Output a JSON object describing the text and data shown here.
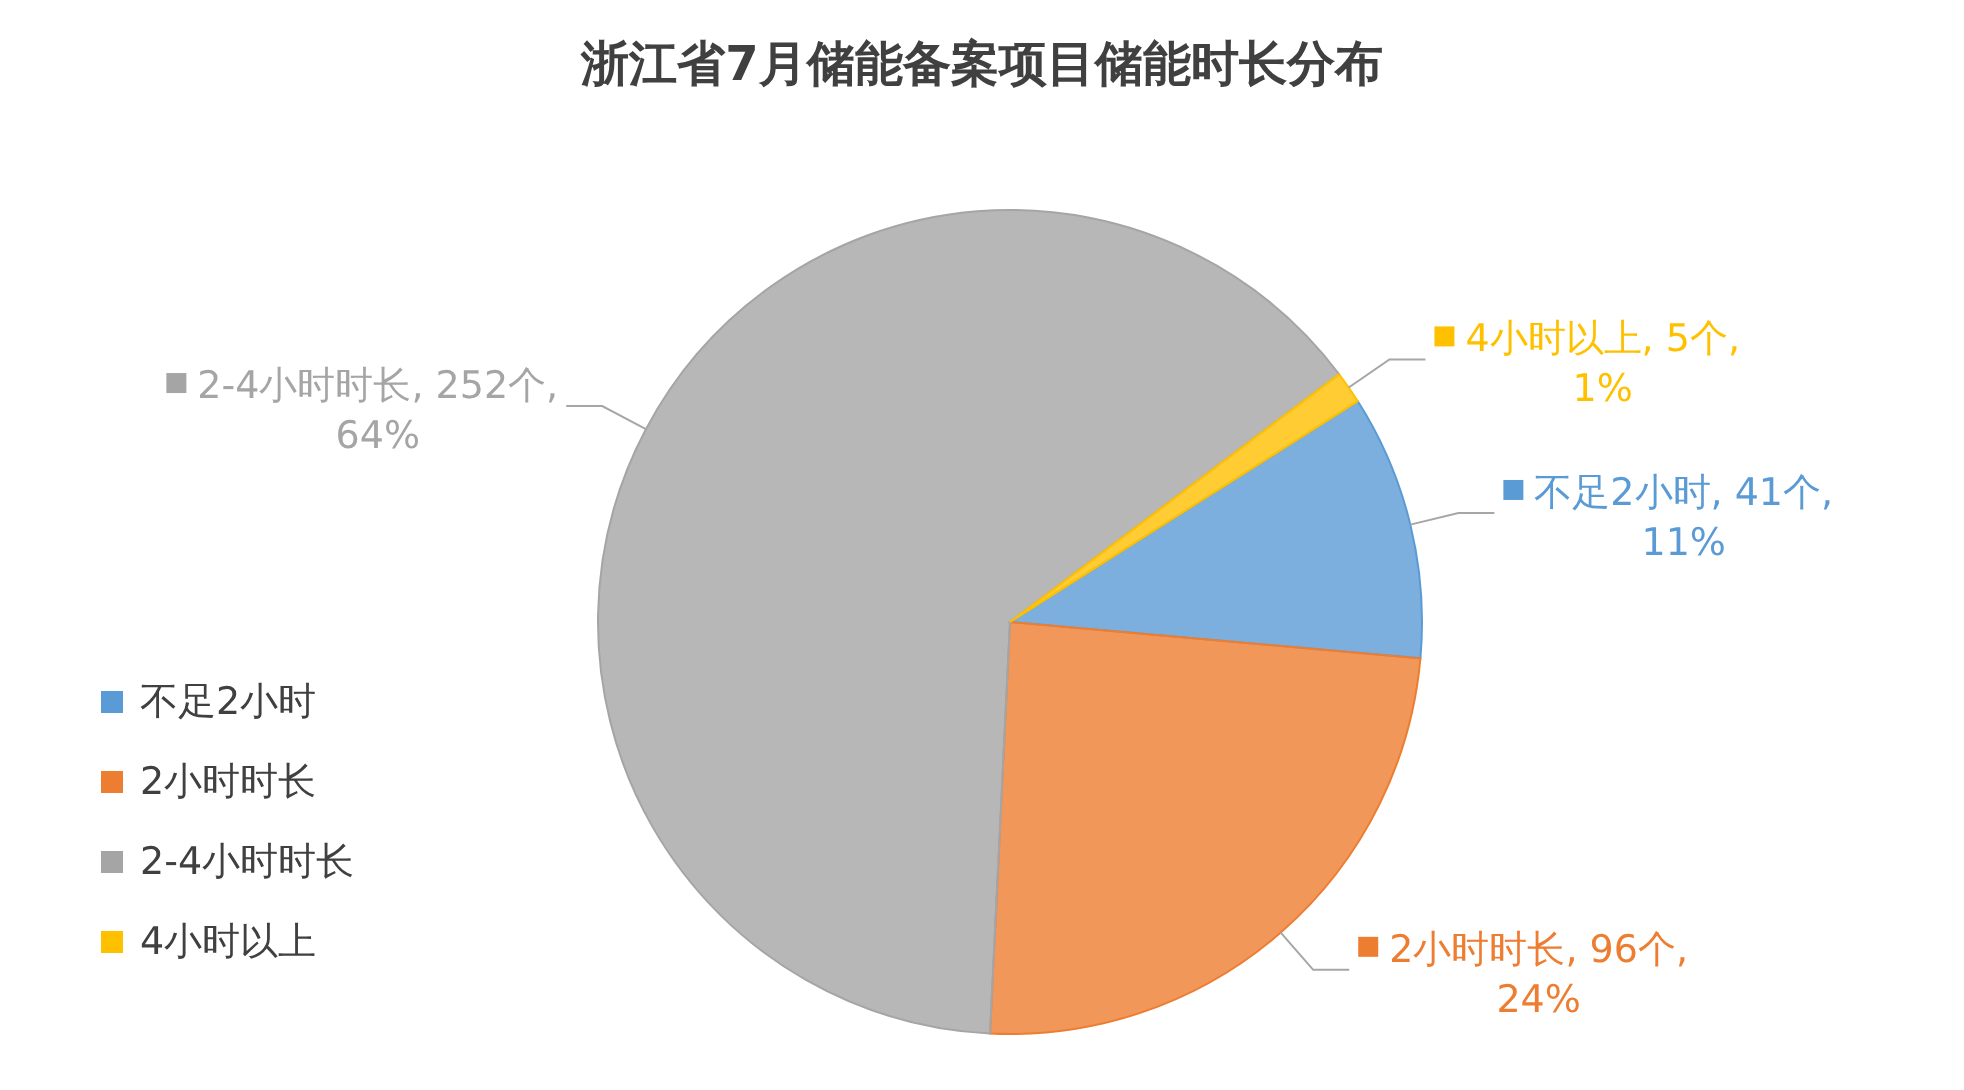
{
  "chart_data": {
    "type": "pie",
    "title": "浙江省7月储能备案项目储能时长分布",
    "categories": [
      "不足2小时",
      "2小时时长",
      "2-4小时时长",
      "4小时以上"
    ],
    "values": [
      41,
      96,
      252,
      5
    ],
    "colors": [
      "#5b9bd5",
      "#ed7d31",
      "#a5a5a5",
      "#ffc000"
    ],
    "value_labels": [
      "不足2小时, 41个, 11%",
      "2小时时长, 96个, 24%",
      "2-4小时时长, 252个, 64%",
      "4小时以上, 5个, 1%"
    ],
    "legend": "left"
  }
}
